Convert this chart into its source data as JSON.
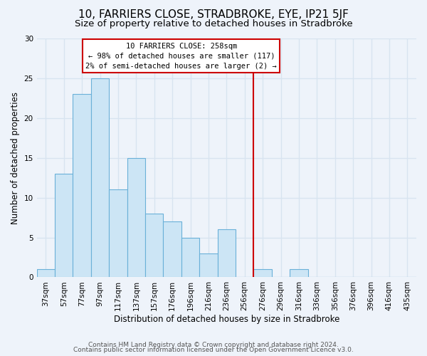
{
  "title": "10, FARRIERS CLOSE, STRADBROKE, EYE, IP21 5JF",
  "subtitle": "Size of property relative to detached houses in Stradbroke",
  "xlabel": "Distribution of detached houses by size in Stradbroke",
  "ylabel": "Number of detached properties",
  "bar_labels": [
    "37sqm",
    "57sqm",
    "77sqm",
    "97sqm",
    "117sqm",
    "137sqm",
    "157sqm",
    "176sqm",
    "196sqm",
    "216sqm",
    "236sqm",
    "256sqm",
    "276sqm",
    "296sqm",
    "316sqm",
    "336sqm",
    "356sqm",
    "376sqm",
    "396sqm",
    "416sqm",
    "435sqm"
  ],
  "bar_heights": [
    1,
    13,
    23,
    25,
    11,
    15,
    8,
    7,
    5,
    3,
    6,
    0,
    1,
    0,
    1,
    0,
    0,
    0,
    0,
    0,
    0
  ],
  "bar_color": "#cce5f5",
  "bar_edge_color": "#6ab0d8",
  "vline_color": "#cc0000",
  "annotation_title": "10 FARRIERS CLOSE: 258sqm",
  "annotation_line1": "← 98% of detached houses are smaller (117)",
  "annotation_line2": "2% of semi-detached houses are larger (2) →",
  "annotation_box_color": "#ffffff",
  "annotation_box_edge": "#cc0000",
  "ylim": [
    0,
    30
  ],
  "yticks": [
    0,
    5,
    10,
    15,
    20,
    25,
    30
  ],
  "footer1": "Contains HM Land Registry data © Crown copyright and database right 2024.",
  "footer2": "Contains public sector information licensed under the Open Government Licence v3.0.",
  "bg_color": "#eef3fa",
  "plot_bg_color": "#eef3fa",
  "grid_color": "#d8e4f0",
  "title_fontsize": 11,
  "subtitle_fontsize": 9.5,
  "axis_label_fontsize": 8.5,
  "tick_fontsize": 7.5,
  "footer_fontsize": 6.5
}
